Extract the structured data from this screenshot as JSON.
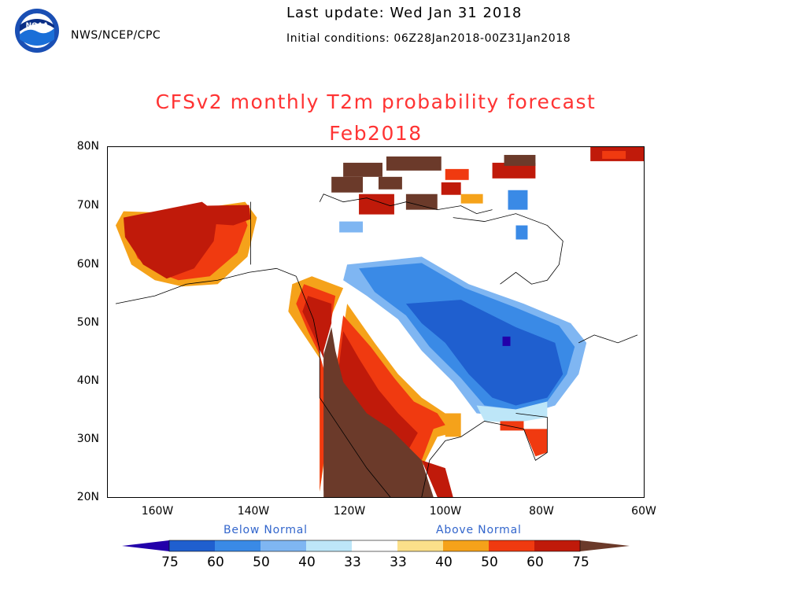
{
  "header": {
    "org": "NWS/NCEP/CPC",
    "last_update": "Last update: Wed Jan 31 2018",
    "initial_conditions": "Initial conditions: 06Z28Jan2018-00Z31Jan2018",
    "logo_text": "NOAA"
  },
  "title": {
    "line1": "CFSv2 monthly T2m probability forecast",
    "line2": "Feb2018",
    "color": "#ff3333"
  },
  "axes": {
    "lat_labels": [
      "80N",
      "70N",
      "60N",
      "50N",
      "40N",
      "30N",
      "20N"
    ],
    "lon_labels": [
      "160W",
      "140W",
      "120W",
      "100W",
      "80W",
      "60W"
    ]
  },
  "legend": {
    "below_label": "Below Normal",
    "above_label": "Above Normal",
    "label_color": "#3366cc",
    "tick_labels": [
      "75",
      "60",
      "50",
      "40",
      "33",
      "33",
      "40",
      "50",
      "60",
      "75"
    ],
    "colors": [
      "#2200aa",
      "#1f5fcf",
      "#3a8ae6",
      "#7fb6f2",
      "#bde6f8",
      "#ffffff",
      "#fbe08a",
      "#f5a21a",
      "#f03a10",
      "#c01a0a",
      "#6b3a2a"
    ]
  }
}
